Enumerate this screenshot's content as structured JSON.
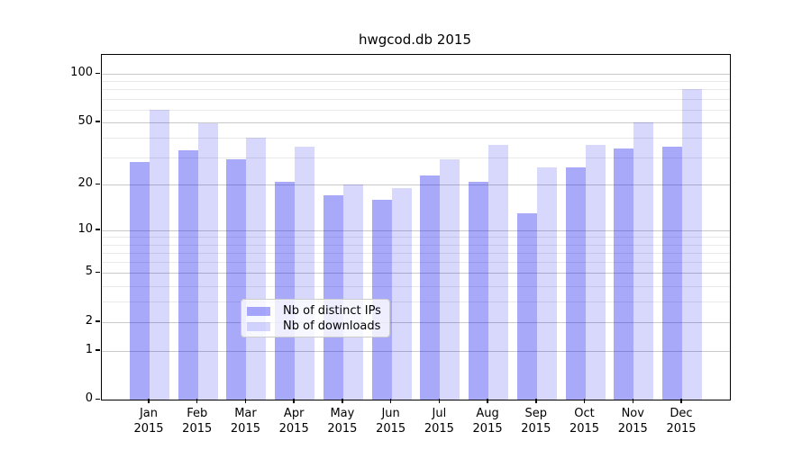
{
  "figure": {
    "title": "hwgcod.db 2015"
  },
  "chart_data": {
    "type": "bar",
    "title": "hwgcod.db 2015",
    "categories": [
      "Jan",
      "Feb",
      "Mar",
      "Apr",
      "May",
      "Jun",
      "Jul",
      "Aug",
      "Sep",
      "Oct",
      "Nov",
      "Dec"
    ],
    "category_year": "2015",
    "series": [
      {
        "name": "Nb of distinct IPs",
        "color": "rgba(10,10,240,0.35)",
        "values": [
          28,
          33,
          29,
          21,
          17,
          16,
          23,
          21,
          13,
          26,
          34,
          35
        ]
      },
      {
        "name": "Nb of downloads",
        "color": "rgba(10,10,240,0.16)",
        "values": [
          60,
          49,
          40,
          35,
          20,
          19,
          29,
          36,
          26,
          36,
          50,
          80
        ]
      }
    ],
    "yscale": "log1p",
    "yticks": [
      0,
      1,
      2,
      5,
      10,
      20,
      50,
      100
    ],
    "minor_yticks": [
      3,
      4,
      6,
      7,
      8,
      9,
      30,
      40,
      60,
      70,
      80,
      90
    ],
    "ylim": [
      0,
      132
    ],
    "grid": true,
    "legend_position": "lower center"
  },
  "colors": {
    "grid_major": "#c9c9c9",
    "grid_minor": "#e9e9e9",
    "spine": "#000000"
  }
}
